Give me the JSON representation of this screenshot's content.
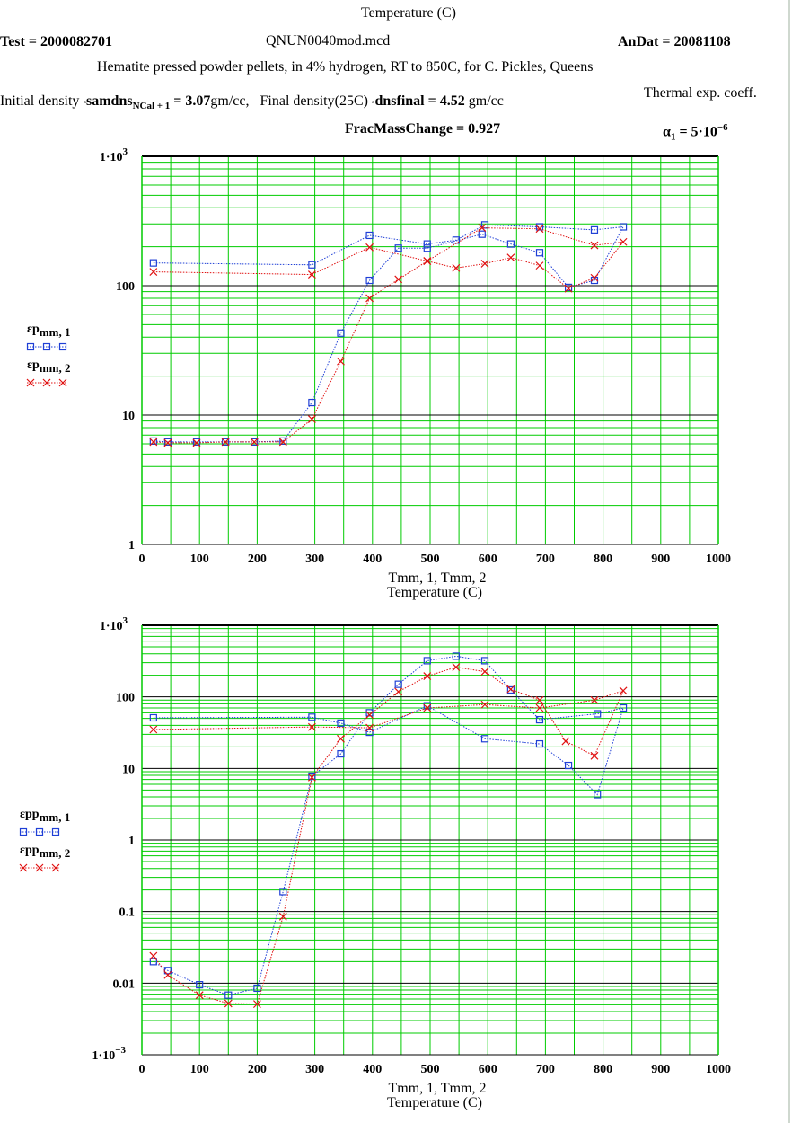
{
  "header": {
    "top_label": "Temperature (C)",
    "test_label": "Test = 2000082701",
    "file_label": "QNUN0040mod.mcd",
    "andat_label": "AnDat = 20081108",
    "description": "Hematite pressed powder pellets, in 4% hydrogen, RT to 850C, for C. Pickles, Queens",
    "initial_density_prefix": "Initial density",
    "initial_density_var": "samdns",
    "initial_density_sub": "NCal + 1",
    "initial_density_value": "= 3.07",
    "initial_density_unit": "gm/cc,",
    "final_density_prefix": "Final density(25C)",
    "final_density_var": "dnsfinal",
    "final_density_value": "= 4.52",
    "final_density_unit": "gm/cc",
    "thermal_label": "Thermal exp. coeff.",
    "alpha_label": "α",
    "alpha_sub": "1",
    "alpha_value": "= 5·10",
    "alpha_exp": "−6",
    "frac_mass_change": "FracMassChange = 0.927"
  },
  "colors": {
    "grid": "#00cc00",
    "series1": "#1f3fd6",
    "series2": "#e01010",
    "decade": "#000000"
  },
  "chart_data": [
    {
      "type": "line",
      "yscale": "log",
      "xlim": [
        0,
        1000
      ],
      "ylim": [
        1,
        1000
      ],
      "xlabel": "T",
      "xlabel_full": "Tmm, 1, Tmm, 2",
      "xlabel2": "Temperature (C)",
      "xticks": [
        "0",
        "100",
        "200",
        "300",
        "400",
        "500",
        "600",
        "700",
        "800",
        "900",
        "1000"
      ],
      "yticks": [
        "1",
        "10",
        "100",
        "1·10"
      ],
      "ytick_top_exp": "3",
      "series": [
        {
          "name": "εp",
          "label_sub": "mm, 1",
          "marker": "square",
          "points": [
            [
              20,
              150
            ],
            [
              295,
              145
            ],
            [
              395,
              245
            ],
            [
              495,
              210
            ],
            [
              545,
              225
            ],
            [
              595,
              295
            ],
            [
              690,
              285
            ],
            [
              785,
              270
            ],
            [
              835,
              285
            ],
            [
              785,
              110
            ],
            [
              740,
              97
            ],
            [
              690,
              180
            ],
            [
              640,
              210
            ],
            [
              590,
              250
            ],
            [
              495,
              195
            ],
            [
              445,
              195
            ],
            [
              395,
              110
            ],
            [
              345,
              43
            ],
            [
              295,
              12.5
            ],
            [
              245,
              6.3
            ],
            [
              195,
              6.2
            ],
            [
              145,
              6.2
            ],
            [
              95,
              6.2
            ],
            [
              45,
              6.2
            ],
            [
              20,
              6.3
            ]
          ]
        },
        {
          "name": "εp",
          "label_sub": "mm, 2",
          "marker": "x",
          "points": [
            [
              20,
              128
            ],
            [
              295,
              122
            ],
            [
              395,
              198
            ],
            [
              495,
              155
            ],
            [
              545,
              137
            ],
            [
              595,
              148
            ],
            [
              640,
              165
            ],
            [
              690,
              143
            ],
            [
              740,
              95
            ],
            [
              785,
              115
            ],
            [
              835,
              218
            ],
            [
              785,
              205
            ],
            [
              690,
              275
            ],
            [
              590,
              280
            ],
            [
              495,
              155
            ],
            [
              445,
              112
            ],
            [
              395,
              80
            ],
            [
              345,
              26
            ],
            [
              295,
              9.3
            ],
            [
              245,
              6.2
            ],
            [
              195,
              6.2
            ],
            [
              145,
              6.2
            ],
            [
              95,
              6.1
            ],
            [
              45,
              6.1
            ],
            [
              20,
              6.2
            ]
          ]
        }
      ]
    },
    {
      "type": "line",
      "yscale": "log",
      "xlim": [
        0,
        1000
      ],
      "ylim": [
        0.001,
        1000
      ],
      "xlabel": "T",
      "xlabel_full": "Tmm, 1, Tmm, 2",
      "xlabel2": "Temperature (C)",
      "xticks": [
        "0",
        "100",
        "200",
        "300",
        "400",
        "500",
        "600",
        "700",
        "800",
        "900",
        "1000"
      ],
      "yticks": [
        "1·10",
        "0.01",
        "0.1",
        "1",
        "10",
        "100",
        "1·10"
      ],
      "ytick_bottom_exp": "−3",
      "ytick_top_exp": "3",
      "series": [
        {
          "name": "εpp",
          "label_sub": "mm, 1",
          "marker": "square",
          "points": [
            [
              20,
              51
            ],
            [
              295,
              52
            ],
            [
              345,
              43
            ],
            [
              395,
              32
            ],
            [
              495,
              75
            ],
            [
              595,
              26
            ],
            [
              690,
              22
            ],
            [
              740,
              11
            ],
            [
              790,
              4.3
            ],
            [
              835,
              70
            ],
            [
              790,
              58
            ],
            [
              690,
              48
            ],
            [
              640,
              125
            ],
            [
              595,
              320
            ],
            [
              545,
              370
            ],
            [
              495,
              320
            ],
            [
              445,
              150
            ],
            [
              395,
              60
            ],
            [
              345,
              16
            ],
            [
              295,
              7.8
            ],
            [
              245,
              0.19
            ],
            [
              200,
              0.0085
            ],
            [
              150,
              0.0068
            ],
            [
              100,
              0.0095
            ],
            [
              45,
              0.015
            ],
            [
              20,
              0.02
            ]
          ]
        },
        {
          "name": "εpp",
          "label_sub": "mm, 2",
          "marker": "x",
          "points": [
            [
              20,
              35
            ],
            [
              295,
              38
            ],
            [
              395,
              37
            ],
            [
              495,
              70
            ],
            [
              595,
              78
            ],
            [
              690,
              70
            ],
            [
              785,
              90
            ],
            [
              835,
              122
            ],
            [
              785,
              15
            ],
            [
              735,
              24
            ],
            [
              690,
              90
            ],
            [
              640,
              128
            ],
            [
              595,
              225
            ],
            [
              545,
              260
            ],
            [
              495,
              195
            ],
            [
              445,
              118
            ],
            [
              395,
              56
            ],
            [
              345,
              26
            ],
            [
              295,
              7.5
            ],
            [
              245,
              0.085
            ],
            [
              200,
              0.0051
            ],
            [
              150,
              0.0052
            ],
            [
              100,
              0.0068
            ],
            [
              45,
              0.013
            ],
            [
              20,
              0.024
            ]
          ]
        }
      ]
    }
  ]
}
